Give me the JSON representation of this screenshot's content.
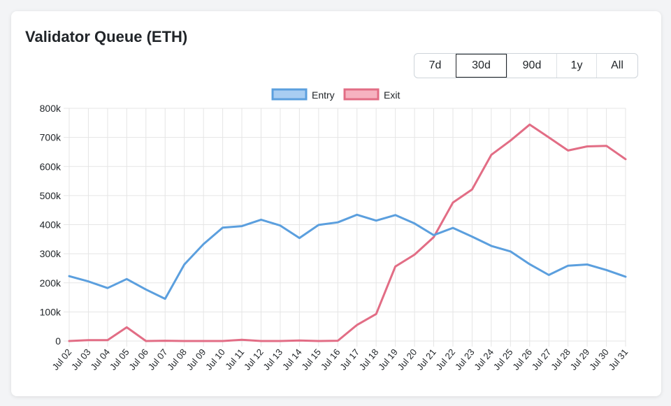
{
  "page": {
    "title": "Validator Queue (ETH)"
  },
  "range_buttons": [
    {
      "label": "7d",
      "active": false
    },
    {
      "label": "30d",
      "active": true
    },
    {
      "label": "90d",
      "active": false
    },
    {
      "label": "1y",
      "active": false
    },
    {
      "label": "All",
      "active": false
    }
  ],
  "chart_data": {
    "type": "line",
    "title": "",
    "xlabel": "",
    "ylabel": "",
    "ylim": [
      0,
      800000
    ],
    "yticks": [
      "0",
      "100k",
      "200k",
      "300k",
      "400k",
      "500k",
      "600k",
      "700k",
      "800k"
    ],
    "grid": true,
    "legend": "top-center",
    "categories": [
      "Jul 02",
      "Jul 03",
      "Jul 04",
      "Jul 05",
      "Jul 06",
      "Jul 07",
      "Jul 08",
      "Jul 09",
      "Jul 10",
      "Jul 11",
      "Jul 12",
      "Jul 13",
      "Jul 14",
      "Jul 15",
      "Jul 16",
      "Jul 17",
      "Jul 18",
      "Jul 19",
      "Jul 20",
      "Jul 21",
      "Jul 22",
      "Jul 23",
      "Jul 24",
      "Jul 25",
      "Jul 26",
      "Jul 27",
      "Jul 28",
      "Jul 29",
      "Jul 30",
      "Jul 31"
    ],
    "series": [
      {
        "name": "Entry",
        "color": "#5b9fde",
        "fill": "#a8cdf2",
        "values": [
          223000,
          205000,
          182000,
          213000,
          177000,
          145000,
          263000,
          333000,
          390000,
          395000,
          417000,
          397000,
          354000,
          399000,
          408000,
          434000,
          414000,
          433000,
          404000,
          364000,
          389000,
          359000,
          327000,
          308000,
          264000,
          227000,
          259000,
          263000,
          244000,
          221000
        ]
      },
      {
        "name": "Exit",
        "color": "#e26d85",
        "fill": "#f6b2c0",
        "values": [
          0,
          3000,
          3000,
          47000,
          0,
          1000,
          0,
          0,
          0,
          4000,
          0,
          0,
          2000,
          0,
          1000,
          55000,
          93000,
          256000,
          297000,
          357000,
          476000,
          521000,
          640000,
          689000,
          744000,
          700000,
          655000,
          669000,
          671000,
          625000
        ]
      }
    ]
  }
}
